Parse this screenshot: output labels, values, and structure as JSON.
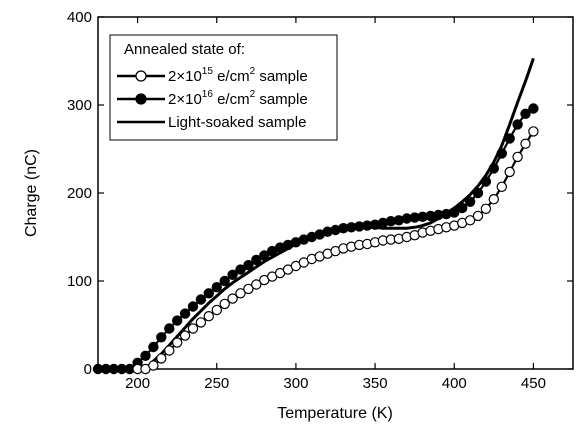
{
  "chart_data": {
    "type": "line",
    "xlabel": "Temperature (K)",
    "ylabel": "Charge (nC)",
    "xlim": [
      175,
      475
    ],
    "ylim": [
      0,
      400
    ],
    "xticks": [
      200,
      250,
      300,
      350,
      400,
      450
    ],
    "yticks": [
      0,
      100,
      200,
      300,
      400
    ],
    "grid": false,
    "legend": {
      "placement": "top-left",
      "title": "Annealed state of:",
      "entries": [
        {
          "base": "2×10",
          "sup": "15",
          "mid": " e/cm",
          "sup2": "2",
          "tail": " sample",
          "marker": "open-circle"
        },
        {
          "base": "2×10",
          "sup": "16",
          "mid": " e/cm",
          "sup2": "2",
          "tail": " sample",
          "marker": "filled-circle"
        },
        {
          "base": "Light-soaked sample",
          "sup": "",
          "mid": "",
          "sup2": "",
          "tail": "",
          "marker": "none"
        }
      ]
    },
    "series": [
      {
        "marker": "open-circle",
        "x": [
          200,
          205,
          210,
          215,
          220,
          225,
          230,
          235,
          240,
          245,
          250,
          255,
          260,
          265,
          270,
          275,
          280,
          285,
          290,
          295,
          300,
          305,
          310,
          315,
          320,
          325,
          330,
          335,
          340,
          345,
          350,
          355,
          360,
          365,
          370,
          375,
          380,
          385,
          390,
          395,
          400,
          405,
          410,
          415,
          420,
          425,
          430,
          435,
          440,
          445,
          450
        ],
        "y": [
          0,
          0,
          4,
          12,
          21,
          30,
          38,
          46,
          53,
          60,
          67,
          74,
          80,
          86,
          91,
          96,
          101,
          105,
          109,
          113,
          117,
          121,
          125,
          128,
          131,
          134,
          137,
          139,
          141,
          142,
          144,
          146,
          147,
          148,
          150,
          152,
          155,
          157,
          159,
          161,
          163,
          166,
          169,
          174,
          182,
          193,
          207,
          224,
          241,
          256,
          270
        ]
      },
      {
        "marker": "filled-circle",
        "x": [
          175,
          180,
          185,
          190,
          195,
          200,
          205,
          210,
          215,
          220,
          225,
          230,
          235,
          240,
          245,
          250,
          255,
          260,
          265,
          270,
          275,
          280,
          285,
          290,
          295,
          300,
          305,
          310,
          315,
          320,
          325,
          330,
          335,
          340,
          345,
          350,
          355,
          360,
          365,
          370,
          375,
          380,
          385,
          390,
          395,
          400,
          405,
          410,
          415,
          420,
          425,
          430,
          435,
          440,
          445,
          450
        ],
        "y": [
          0,
          0,
          0,
          0,
          0,
          7,
          15,
          25,
          36,
          46,
          55,
          63,
          71,
          79,
          86,
          93,
          100,
          107,
          113,
          118,
          124,
          129,
          134,
          138,
          141,
          144,
          147,
          150,
          153,
          156,
          158,
          160,
          161,
          162,
          163,
          164,
          166,
          168,
          169,
          171,
          172,
          173,
          174,
          175,
          176,
          178,
          183,
          190,
          200,
          213,
          228,
          245,
          262,
          278,
          290,
          296
        ]
      },
      {
        "marker": "none",
        "x": [
          205,
          210,
          215,
          220,
          225,
          230,
          235,
          240,
          245,
          250,
          255,
          260,
          265,
          270,
          275,
          280,
          285,
          290,
          295,
          300,
          305,
          310,
          315,
          320,
          325,
          330,
          335,
          340,
          345,
          350,
          355,
          360,
          365,
          370,
          375,
          380,
          385,
          390,
          395,
          400,
          405,
          410,
          415,
          420,
          425,
          430,
          435,
          440,
          445,
          450
        ],
        "y": [
          0,
          9,
          17,
          27,
          37,
          47,
          57,
          66,
          75,
          83,
          91,
          98,
          104,
          110,
          116,
          122,
          127,
          132,
          137,
          142,
          146,
          150,
          153,
          156,
          158,
          160,
          161,
          161,
          161,
          161,
          160,
          160,
          160,
          160,
          161,
          163,
          166,
          171,
          177,
          183,
          190,
          198,
          208,
          220,
          235,
          254,
          278,
          303,
          327,
          353
        ]
      }
    ]
  }
}
